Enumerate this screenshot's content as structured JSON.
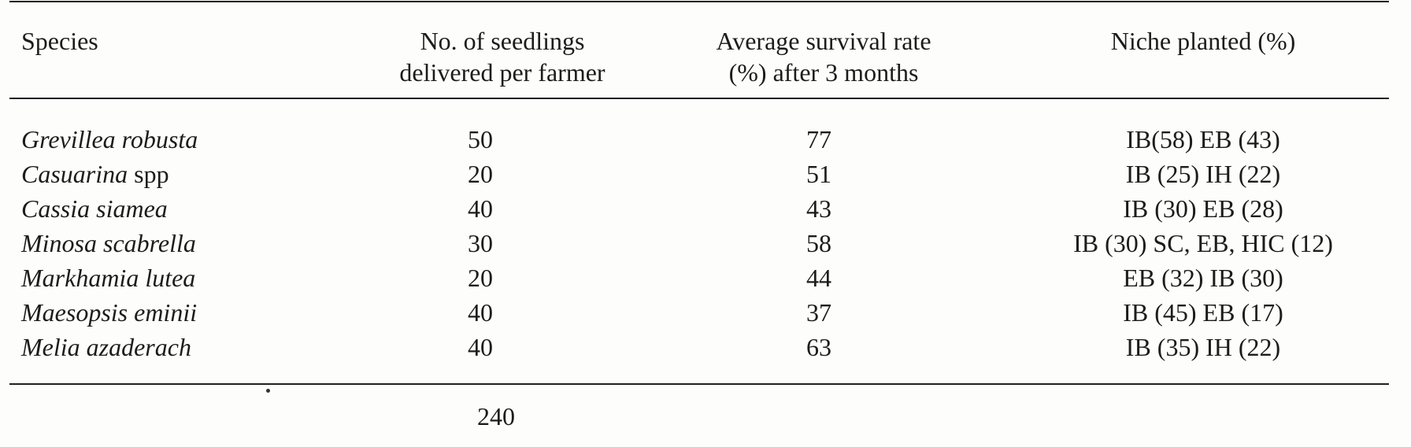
{
  "table": {
    "headers": {
      "species": "Species",
      "seedlings_line1": "No. of seedlings",
      "seedlings_line2": "delivered per farmer",
      "survival_line1": "Average survival rate",
      "survival_line2": "(%) after 3 months",
      "niche": "Niche planted (%)"
    },
    "rows": [
      {
        "species": "Grevillea robusta",
        "species_suffix": "",
        "seedlings": "50",
        "survival": "77",
        "niche": "IB(58) EB (43)"
      },
      {
        "species": "Casuarina",
        "species_suffix": " spp",
        "seedlings": "20",
        "survival": "51",
        "niche": "IB (25) IH (22)"
      },
      {
        "species": "Cassia siamea",
        "species_suffix": "",
        "seedlings": "40",
        "survival": "43",
        "niche": "IB (30) EB (28)"
      },
      {
        "species": "Minosa scabrella",
        "species_suffix": "",
        "seedlings": "30",
        "survival": "58",
        "niche": "IB (30) SC, EB, HIC (12)"
      },
      {
        "species": "Markhamia lutea",
        "species_suffix": "",
        "seedlings": "20",
        "survival": "44",
        "niche": "EB (32) IB (30)"
      },
      {
        "species": "Maesopsis eminii",
        "species_suffix": "",
        "seedlings": "40",
        "survival": "37",
        "niche": "IB (45) EB (17)"
      },
      {
        "species": "Melia azaderach",
        "species_suffix": "",
        "seedlings": "40",
        "survival": "63",
        "niche": "IB (35) IH (22)"
      }
    ],
    "total_seedlings": "240"
  }
}
